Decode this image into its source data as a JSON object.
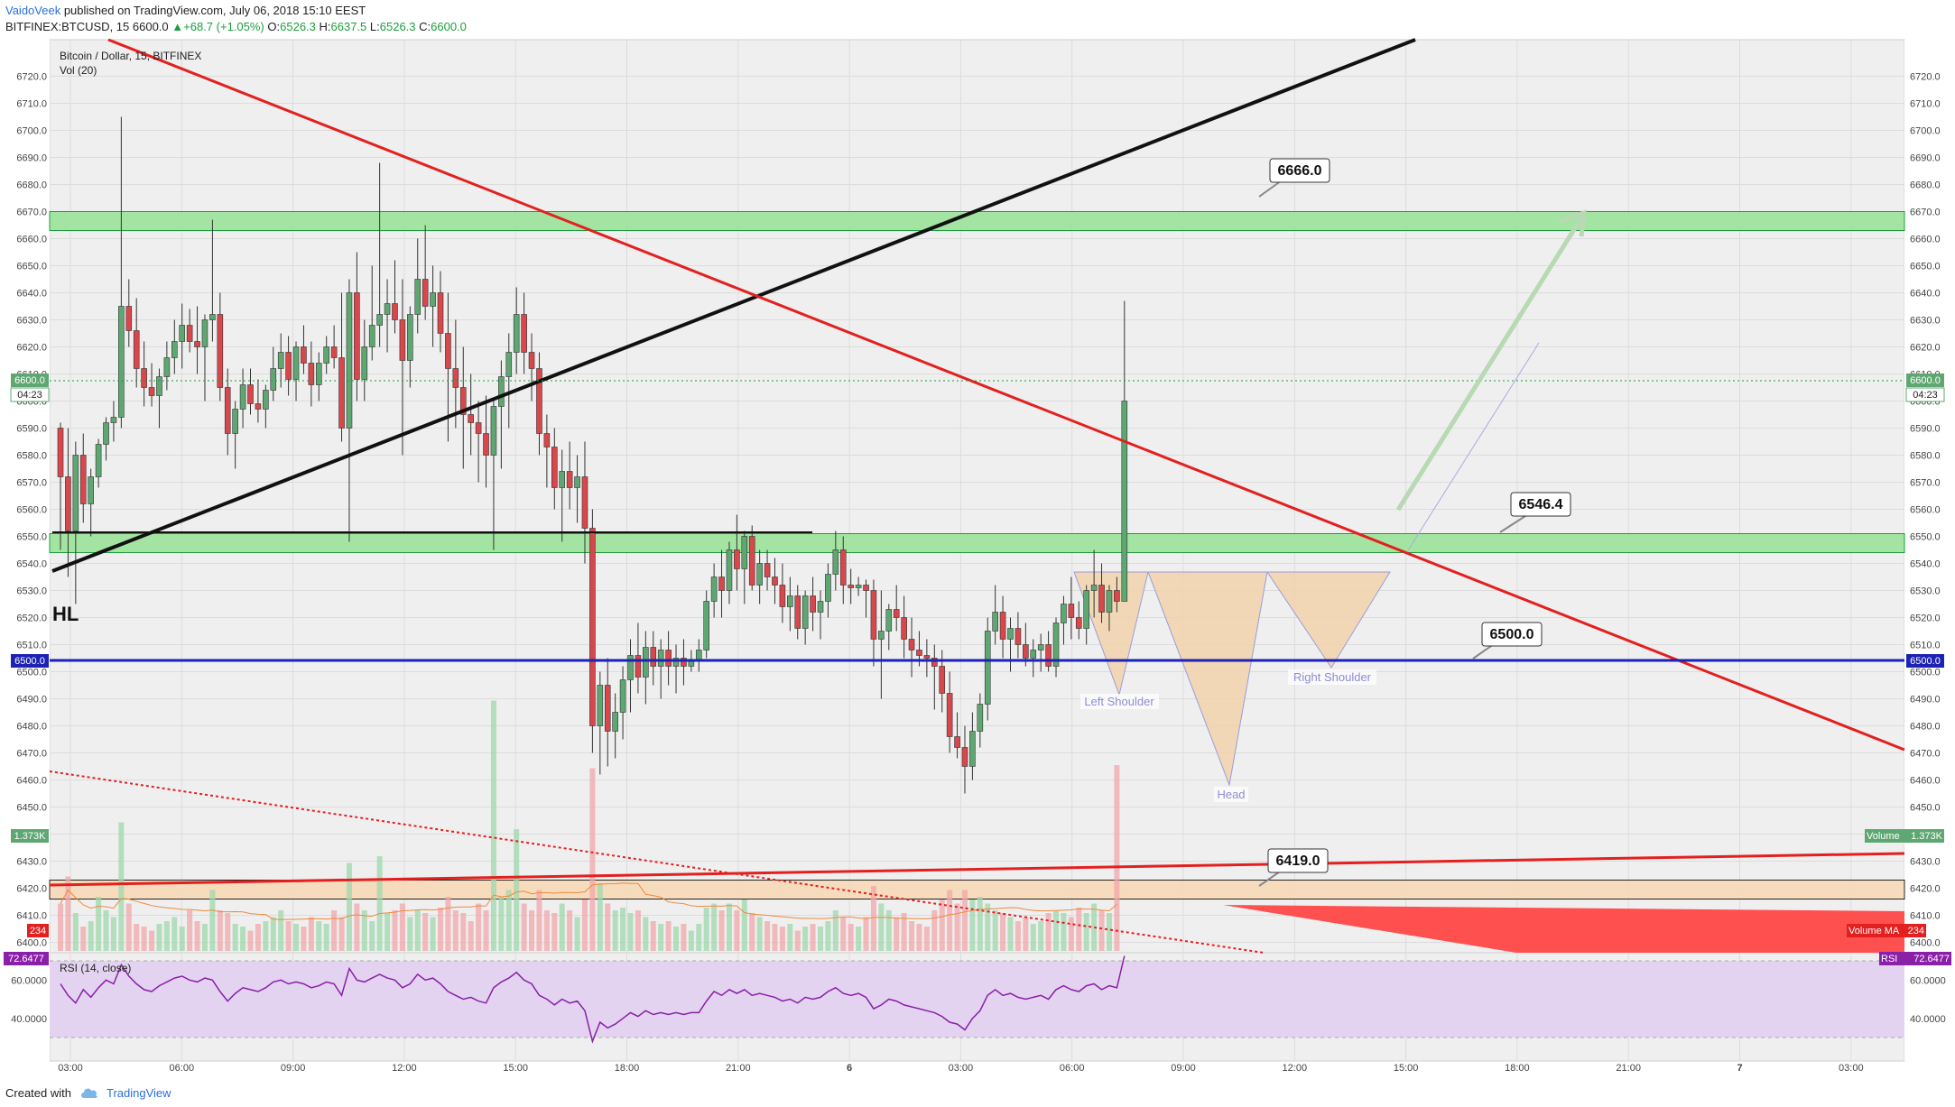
{
  "header": {
    "author": "VaidoVeek",
    "published": "published on TradingView.com, July 06, 2018 15:10 EEST",
    "symbol": "BITFINEX:BTCUSD, 15",
    "last": "6600.0",
    "arrow": "▲",
    "change": "+68.7 (+1.05%)",
    "o_label": "O:",
    "o": "6526.3",
    "h_label": "H:",
    "h": "6637.5",
    "l_label": "L:",
    "l": "6526.3",
    "c_label": "C:",
    "c": "6600.0"
  },
  "pane": {
    "title": "Bitcoin / Dollar, 15, BITFINEX",
    "vol_label": "Vol (20)",
    "rsi_label": "RSI (14, close)",
    "countdown": "04:23",
    "price_tag": "6600.0",
    "blue_tag": "6500.0",
    "vol_value": "1.373K",
    "vol_ma_value": "234",
    "volume_label": "Volume",
    "volume_ma_label": "Volume MA",
    "rsi_value": "72.6477",
    "rsi_tag": "RSI"
  },
  "annotations": {
    "hl": "HL",
    "box_6666": "6666.0",
    "box_6546": "6546.4",
    "box_6500": "6500.0",
    "box_6419": "6419.0",
    "left_shoulder": "Left Shoulder",
    "head": "Head",
    "right_shoulder": "Right Shoulder"
  },
  "footer": {
    "created": "Created with",
    "brand": "TradingView"
  },
  "colors": {
    "up": "#5fa772",
    "down": "#d8474b",
    "green_zone": "#9fe39d",
    "orange_zone": "#f5d9b8",
    "blue_line": "#1c22b4",
    "red_line": "#e3201f",
    "rsi_fill": "#e3d3f0",
    "rsi_line": "#8a1fa8"
  },
  "chart_data": {
    "type": "candlestick",
    "title": "Bitcoin / Dollar, 15, BITFINEX",
    "price_ticks": [
      "6720.0",
      "6710.0",
      "6700.0",
      "6690.0",
      "6680.0",
      "6670.0",
      "6660.0",
      "6650.0",
      "6640.0",
      "6630.0",
      "6620.0",
      "6610.0",
      "6600.0",
      "6590.0",
      "6580.0",
      "6570.0",
      "6560.0",
      "6550.0",
      "6540.0",
      "6530.0",
      "6520.0",
      "6510.0",
      "6500.0",
      "6490.0",
      "6480.0",
      "6470.0",
      "6460.0",
      "6450.0",
      "6440.0",
      "6430.0",
      "6420.0",
      "6410.0",
      "6400.0"
    ],
    "rsi_ticks": [
      "60.0000",
      "40.0000"
    ],
    "time_ticks": [
      "03:00",
      "06:00",
      "09:00",
      "12:00",
      "15:00",
      "18:00",
      "21:00",
      "6",
      "03:00",
      "06:00",
      "09:00",
      "12:00",
      "15:00",
      "18:00",
      "21:00",
      "7",
      "03:00"
    ],
    "ylim": [
      6398,
      6722
    ],
    "zones": [
      {
        "name": "resistance",
        "from": 6663,
        "to": 6670
      },
      {
        "name": "support",
        "from": 6544,
        "to": 6551
      },
      {
        "name": "support-low",
        "from": 6416,
        "to": 6423
      }
    ],
    "levels": [
      6666.0,
      6546.4,
      6500.0,
      6419.0
    ],
    "last_price": 6600.0,
    "candles": [
      [
        6590,
        6592,
        6545,
        6572
      ],
      [
        6572,
        6590,
        6535,
        6552
      ],
      [
        6552,
        6585,
        6525,
        6580
      ],
      [
        6580,
        6588,
        6555,
        6562
      ],
      [
        6562,
        6575,
        6550,
        6572
      ],
      [
        6572,
        6586,
        6568,
        6584
      ],
      [
        6584,
        6594,
        6578,
        6592
      ],
      [
        6592,
        6600,
        6585,
        6594
      ],
      [
        6594,
        6705,
        6590,
        6635
      ],
      [
        6635,
        6645,
        6620,
        6626
      ],
      [
        6626,
        6638,
        6605,
        6612
      ],
      [
        6612,
        6622,
        6598,
        6605
      ],
      [
        6605,
        6614,
        6598,
        6602
      ],
      [
        6602,
        6612,
        6590,
        6609
      ],
      [
        6609,
        6622,
        6604,
        6616
      ],
      [
        6616,
        6630,
        6610,
        6622
      ],
      [
        6622,
        6636,
        6612,
        6628
      ],
      [
        6628,
        6634,
        6618,
        6622
      ],
      [
        6622,
        6635,
        6610,
        6620
      ],
      [
        6620,
        6632,
        6600,
        6630
      ],
      [
        6630,
        6667,
        6622,
        6632
      ],
      [
        6632,
        6640,
        6600,
        6605
      ],
      [
        6605,
        6612,
        6580,
        6588
      ],
      [
        6588,
        6600,
        6575,
        6597
      ],
      [
        6597,
        6612,
        6590,
        6606
      ],
      [
        6606,
        6612,
        6595,
        6599
      ],
      [
        6599,
        6608,
        6592,
        6597
      ],
      [
        6597,
        6606,
        6590,
        6604
      ],
      [
        6604,
        6620,
        6600,
        6612
      ],
      [
        6612,
        6625,
        6605,
        6618
      ],
      [
        6618,
        6624,
        6602,
        6608
      ],
      [
        6608,
        6622,
        6600,
        6620
      ],
      [
        6620,
        6628,
        6610,
        6614
      ],
      [
        6614,
        6622,
        6598,
        6606
      ],
      [
        6606,
        6618,
        6600,
        6614
      ],
      [
        6614,
        6624,
        6610,
        6620
      ],
      [
        6620,
        6628,
        6612,
        6616
      ],
      [
        6616,
        6640,
        6585,
        6590
      ],
      [
        6590,
        6645,
        6548,
        6640
      ],
      [
        6640,
        6655,
        6600,
        6608
      ],
      [
        6608,
        6630,
        6600,
        6620
      ],
      [
        6620,
        6650,
        6615,
        6628
      ],
      [
        6628,
        6688,
        6620,
        6632
      ],
      [
        6632,
        6645,
        6618,
        6636
      ],
      [
        6636,
        6652,
        6625,
        6630
      ],
      [
        6630,
        6645,
        6580,
        6615
      ],
      [
        6615,
        6635,
        6605,
        6632
      ],
      [
        6632,
        6660,
        6625,
        6645
      ],
      [
        6645,
        6665,
        6630,
        6635
      ],
      [
        6635,
        6650,
        6620,
        6640
      ],
      [
        6640,
        6648,
        6618,
        6625
      ],
      [
        6625,
        6640,
        6585,
        6612
      ],
      [
        6612,
        6630,
        6590,
        6605
      ],
      [
        6605,
        6620,
        6575,
        6595
      ],
      [
        6595,
        6610,
        6580,
        6592
      ],
      [
        6592,
        6600,
        6570,
        6588
      ],
      [
        6588,
        6602,
        6568,
        6580
      ],
      [
        6580,
        6600,
        6545,
        6598
      ],
      [
        6598,
        6615,
        6575,
        6609
      ],
      [
        6609,
        6625,
        6590,
        6618
      ],
      [
        6618,
        6642,
        6610,
        6632
      ],
      [
        6632,
        6640,
        6610,
        6618
      ],
      [
        6618,
        6625,
        6600,
        6612
      ],
      [
        6612,
        6618,
        6580,
        6588
      ],
      [
        6588,
        6595,
        6568,
        6583
      ],
      [
        6583,
        6590,
        6560,
        6568
      ],
      [
        6568,
        6582,
        6548,
        6574
      ],
      [
        6574,
        6585,
        6560,
        6568
      ],
      [
        6568,
        6580,
        6555,
        6572
      ],
      [
        6572,
        6585,
        6540,
        6553
      ],
      [
        6553,
        6560,
        6470,
        6480
      ],
      [
        6480,
        6500,
        6462,
        6495
      ],
      [
        6495,
        6505,
        6465,
        6478
      ],
      [
        6478,
        6492,
        6468,
        6485
      ],
      [
        6485,
        6502,
        6475,
        6497
      ],
      [
        6497,
        6512,
        6485,
        6506
      ],
      [
        6506,
        6518,
        6492,
        6498
      ],
      [
        6498,
        6515,
        6488,
        6509
      ],
      [
        6509,
        6515,
        6495,
        6502
      ],
      [
        6502,
        6512,
        6490,
        6508
      ],
      [
        6508,
        6515,
        6495,
        6502
      ],
      [
        6502,
        6510,
        6492,
        6505
      ],
      [
        6505,
        6512,
        6495,
        6502
      ],
      [
        6502,
        6508,
        6500,
        6504
      ],
      [
        6504,
        6512,
        6500,
        6508
      ],
      [
        6508,
        6530,
        6505,
        6526
      ],
      [
        6526,
        6540,
        6520,
        6535
      ],
      [
        6535,
        6545,
        6520,
        6530
      ],
      [
        6530,
        6548,
        6525,
        6545
      ],
      [
        6545,
        6558,
        6530,
        6538
      ],
      [
        6538,
        6552,
        6525,
        6550
      ],
      [
        6550,
        6554,
        6530,
        6532
      ],
      [
        6532,
        6545,
        6525,
        6540
      ],
      [
        6540,
        6545,
        6530,
        6535
      ],
      [
        6535,
        6542,
        6525,
        6532
      ],
      [
        6532,
        6540,
        6518,
        6524
      ],
      [
        6524,
        6535,
        6515,
        6528
      ],
      [
        6528,
        6532,
        6512,
        6516
      ],
      [
        6516,
        6530,
        6510,
        6528
      ],
      [
        6528,
        6535,
        6515,
        6522
      ],
      [
        6522,
        6530,
        6512,
        6526
      ],
      [
        6526,
        6540,
        6520,
        6536
      ],
      [
        6536,
        6552,
        6530,
        6545
      ],
      [
        6545,
        6550,
        6525,
        6532
      ],
      [
        6532,
        6538,
        6525,
        6531
      ],
      [
        6531,
        6535,
        6528,
        6532
      ],
      [
        6532,
        6534,
        6520,
        6530
      ],
      [
        6530,
        6534,
        6502,
        6512
      ],
      [
        6512,
        6530,
        6490,
        6515
      ],
      [
        6515,
        6525,
        6508,
        6523
      ],
      [
        6523,
        6532,
        6515,
        6520
      ],
      [
        6520,
        6528,
        6505,
        6512
      ],
      [
        6512,
        6520,
        6498,
        6508
      ],
      [
        6508,
        6515,
        6502,
        6506
      ],
      [
        6506,
        6512,
        6498,
        6505
      ],
      [
        6505,
        6510,
        6486,
        6502
      ],
      [
        6502,
        6508,
        6485,
        6492
      ],
      [
        6492,
        6500,
        6470,
        6476
      ],
      [
        6476,
        6485,
        6468,
        6472
      ],
      [
        6472,
        6480,
        6455,
        6465
      ],
      [
        6465,
        6485,
        6460,
        6478
      ],
      [
        6478,
        6492,
        6472,
        6488
      ],
      [
        6488,
        6520,
        6482,
        6515
      ],
      [
        6515,
        6532,
        6510,
        6522
      ],
      [
        6522,
        6528,
        6505,
        6512
      ],
      [
        6512,
        6520,
        6500,
        6516
      ],
      [
        6516,
        6522,
        6505,
        6510
      ],
      [
        6510,
        6518,
        6502,
        6505
      ],
      [
        6505,
        6512,
        6498,
        6508
      ],
      [
        6508,
        6514,
        6500,
        6510
      ],
      [
        6510,
        6515,
        6500,
        6502
      ],
      [
        6502,
        6520,
        6498,
        6518
      ],
      [
        6518,
        6528,
        6510,
        6525
      ],
      [
        6525,
        6535,
        6512,
        6520
      ],
      [
        6520,
        6526,
        6512,
        6516
      ],
      [
        6516,
        6532,
        6510,
        6530
      ],
      [
        6530,
        6545,
        6520,
        6532
      ],
      [
        6532,
        6540,
        6518,
        6522
      ],
      [
        6522,
        6532,
        6515,
        6530
      ],
      [
        6530,
        6535,
        6522,
        6526
      ],
      [
        6526,
        6637,
        6526,
        6600
      ]
    ],
    "volume": [
      0.35,
      0.55,
      0.28,
      0.18,
      0.22,
      0.4,
      0.3,
      0.25,
      0.95,
      0.35,
      0.2,
      0.18,
      0.15,
      0.2,
      0.22,
      0.25,
      0.18,
      0.3,
      0.22,
      0.2,
      0.45,
      0.3,
      0.28,
      0.2,
      0.18,
      0.15,
      0.2,
      0.22,
      0.25,
      0.3,
      0.22,
      0.2,
      0.18,
      0.25,
      0.22,
      0.2,
      0.3,
      0.25,
      0.65,
      0.35,
      0.3,
      0.22,
      0.7,
      0.28,
      0.3,
      0.35,
      0.25,
      0.3,
      0.28,
      0.25,
      0.32,
      0.4,
      0.3,
      0.28,
      0.22,
      0.35,
      0.3,
      1.85,
      0.4,
      0.45,
      0.9,
      0.35,
      0.3,
      0.45,
      0.3,
      0.28,
      0.35,
      0.3,
      0.25,
      0.38,
      1.35,
      0.5,
      0.35,
      0.3,
      0.32,
      0.28,
      0.3,
      0.25,
      0.22,
      0.2,
      0.22,
      0.18,
      0.2,
      0.15,
      0.2,
      0.32,
      0.35,
      0.3,
      0.35,
      0.3,
      0.38,
      0.28,
      0.25,
      0.22,
      0.2,
      0.18,
      0.2,
      0.15,
      0.18,
      0.2,
      0.18,
      0.22,
      0.3,
      0.25,
      0.2,
      0.18,
      0.25,
      0.48,
      0.35,
      0.3,
      0.25,
      0.28,
      0.22,
      0.2,
      0.18,
      0.3,
      0.38,
      0.45,
      0.35,
      0.45,
      0.38,
      0.4,
      0.35,
      0.3,
      0.28,
      0.25,
      0.22,
      0.25,
      0.2,
      0.22,
      0.28,
      0.3,
      0.28,
      0.25,
      0.32,
      0.28,
      0.35,
      0.3,
      0.28,
      1.373
    ],
    "rsi": [
      58,
      52,
      48,
      55,
      51,
      56,
      60,
      58,
      68,
      62,
      58,
      55,
      54,
      57,
      59,
      61,
      62,
      60,
      59,
      61,
      60,
      54,
      49,
      53,
      56,
      55,
      54,
      56,
      59,
      60,
      58,
      59,
      58,
      56,
      57,
      59,
      58,
      52,
      66,
      60,
      59,
      61,
      63,
      61,
      60,
      56,
      58,
      63,
      60,
      61,
      58,
      54,
      52,
      50,
      51,
      49,
      48,
      56,
      59,
      61,
      64,
      60,
      58,
      52,
      50,
      47,
      50,
      48,
      49,
      44,
      28,
      38,
      35,
      37,
      40,
      43,
      41,
      44,
      42,
      43,
      42,
      43,
      42,
      43,
      43,
      49,
      54,
      52,
      55,
      53,
      55,
      52,
      53,
      52,
      51,
      49,
      50,
      48,
      51,
      50,
      51,
      54,
      56,
      53,
      52,
      53,
      51,
      45,
      47,
      50,
      49,
      47,
      46,
      45,
      44,
      43,
      41,
      38,
      37,
      34,
      40,
      44,
      52,
      55,
      52,
      53,
      51,
      50,
      51,
      52,
      50,
      55,
      57,
      55,
      54,
      57,
      58,
      55,
      57,
      56,
      72.6
    ]
  }
}
